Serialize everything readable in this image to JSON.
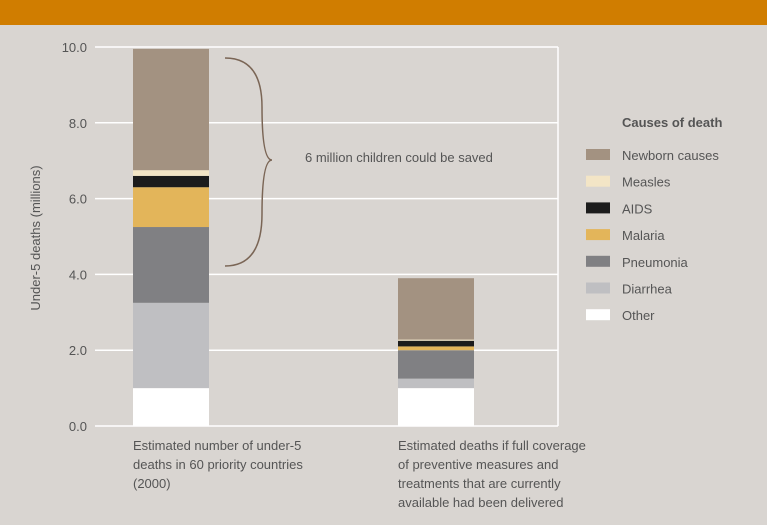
{
  "chart_data": {
    "type": "bar",
    "stacked": true,
    "ylabel": "Under-5 deaths (millions)",
    "ylim": [
      0,
      10
    ],
    "yticks": [
      "0.0",
      "2.0",
      "4.0",
      "6.0",
      "8.0",
      "10.0"
    ],
    "grid": true,
    "legend_title": "Causes of death",
    "legend_position": "right",
    "categories": [
      "Estimated number of under-5\ndeaths in 60 priority countries\n(2000)",
      "Estimated deaths if full coverage\nof preventive measures and\ntreatments that are currently\navailable had been delivered"
    ],
    "series": [
      {
        "name": "Other",
        "color": "#ffffff",
        "values": [
          1.0,
          1.0
        ]
      },
      {
        "name": "Diarrhea",
        "color": "#bfbfc2",
        "values": [
          2.25,
          0.25
        ]
      },
      {
        "name": "Pneumonia",
        "color": "#808083",
        "values": [
          2.0,
          0.75
        ]
      },
      {
        "name": "Malaria",
        "color": "#e3b55a",
        "values": [
          1.05,
          0.1
        ]
      },
      {
        "name": "AIDS",
        "color": "#1c1c1c",
        "values": [
          0.3,
          0.15
        ]
      },
      {
        "name": "Measles",
        "color": "#f3e5c6",
        "values": [
          0.15,
          0.03
        ]
      },
      {
        "name": "Newborn causes",
        "color": "#a39281",
        "values": [
          3.2,
          1.62
        ]
      }
    ],
    "annotation": "6 million children could be saved"
  }
}
